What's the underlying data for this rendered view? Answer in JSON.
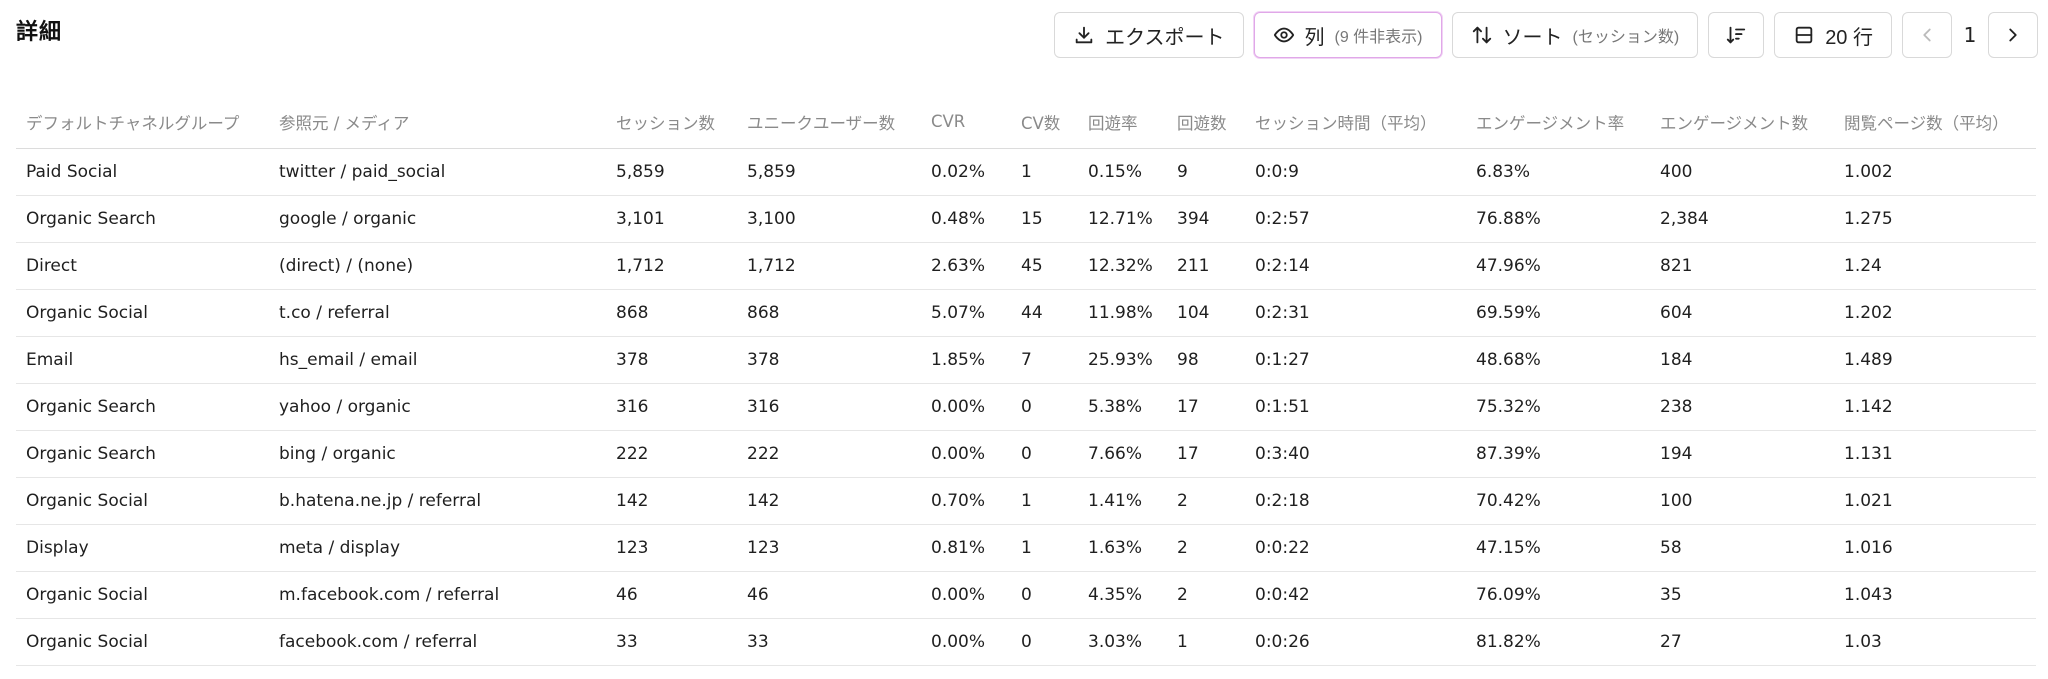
{
  "page": {
    "title": "詳細"
  },
  "toolbar": {
    "export_label": "エクスポート",
    "columns_label": "列",
    "columns_sub": "(9 件非表示)",
    "sort_label": "ソート",
    "sort_sub": "(セッション数)",
    "rows_label": "20 行",
    "page_number": "1"
  },
  "icons": {
    "export": "download-icon",
    "columns": "eye-icon",
    "sort": "sort-arrows-icon",
    "sort_direction": "sort-descending-icon",
    "rows": "rows-icon",
    "prev": "chevron-left-icon",
    "next": "chevron-right-icon"
  },
  "colors": {
    "active_border": "#e0a8e8",
    "header_text": "#8a8a8a",
    "border": "#dcdcdc"
  },
  "table": {
    "headers": [
      "デフォルトチャネルグループ",
      "参照元 / メディア",
      "セッション数",
      "ユニークユーザー数",
      "CVR",
      "CV数",
      "回遊率",
      "回遊数",
      "セッション時間（平均）",
      "エンゲージメント率",
      "エンゲージメント数",
      "閲覧ページ数（平均）"
    ],
    "rows": [
      [
        "Paid Social",
        "twitter / paid_social",
        "5,859",
        "5,859",
        "0.02%",
        "1",
        "0.15%",
        "9",
        "0:0:9",
        "6.83%",
        "400",
        "1.002"
      ],
      [
        "Organic Search",
        "google / organic",
        "3,101",
        "3,100",
        "0.48%",
        "15",
        "12.71%",
        "394",
        "0:2:57",
        "76.88%",
        "2,384",
        "1.275"
      ],
      [
        "Direct",
        "(direct) / (none)",
        "1,712",
        "1,712",
        "2.63%",
        "45",
        "12.32%",
        "211",
        "0:2:14",
        "47.96%",
        "821",
        "1.24"
      ],
      [
        "Organic Social",
        "t.co / referral",
        "868",
        "868",
        "5.07%",
        "44",
        "11.98%",
        "104",
        "0:2:31",
        "69.59%",
        "604",
        "1.202"
      ],
      [
        "Email",
        "hs_email / email",
        "378",
        "378",
        "1.85%",
        "7",
        "25.93%",
        "98",
        "0:1:27",
        "48.68%",
        "184",
        "1.489"
      ],
      [
        "Organic Search",
        "yahoo / organic",
        "316",
        "316",
        "0.00%",
        "0",
        "5.38%",
        "17",
        "0:1:51",
        "75.32%",
        "238",
        "1.142"
      ],
      [
        "Organic Search",
        "bing / organic",
        "222",
        "222",
        "0.00%",
        "0",
        "7.66%",
        "17",
        "0:3:40",
        "87.39%",
        "194",
        "1.131"
      ],
      [
        "Organic Social",
        "b.hatena.ne.jp / referral",
        "142",
        "142",
        "0.70%",
        "1",
        "1.41%",
        "2",
        "0:2:18",
        "70.42%",
        "100",
        "1.021"
      ],
      [
        "Display",
        "meta / display",
        "123",
        "123",
        "0.81%",
        "1",
        "1.63%",
        "2",
        "0:0:22",
        "47.15%",
        "58",
        "1.016"
      ],
      [
        "Organic Social",
        "m.facebook.com / referral",
        "46",
        "46",
        "0.00%",
        "0",
        "4.35%",
        "2",
        "0:0:42",
        "76.09%",
        "35",
        "1.043"
      ],
      [
        "Organic Social",
        "facebook.com / referral",
        "33",
        "33",
        "0.00%",
        "0",
        "3.03%",
        "1",
        "0:0:26",
        "81.82%",
        "27",
        "1.03"
      ]
    ]
  }
}
